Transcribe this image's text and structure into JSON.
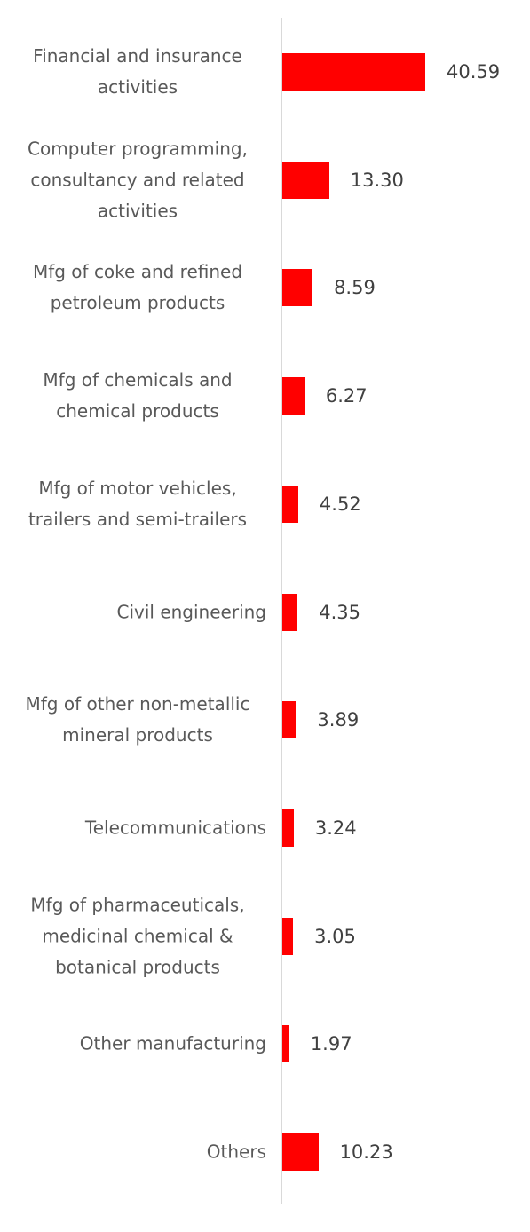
{
  "chart_data": {
    "type": "bar",
    "orientation": "horizontal",
    "categories": [
      "Financial and insurance activities",
      "Computer programming, consultancy and related activities",
      "Mfg of coke and refined petroleum products",
      "Mfg of chemicals and chemical products",
      "Mfg of motor vehicles, trailers and semi-trailers",
      "Civil engineering",
      "Mfg of other non-metallic mineral products",
      "Telecommunications",
      "Mfg of pharmaceuticals, medicinal chemical & botanical products",
      "Other manufacturing",
      "Others"
    ],
    "values": [
      40.59,
      13.3,
      8.59,
      6.27,
      4.52,
      4.35,
      3.89,
      3.24,
      3.05,
      1.97,
      10.23
    ],
    "value_labels": [
      "40.59",
      "13.30",
      "8.59",
      "6.27",
      "4.52",
      "4.35",
      "3.89",
      "3.24",
      "3.05",
      "1.97",
      "10.23"
    ],
    "color": "#ff0000"
  }
}
